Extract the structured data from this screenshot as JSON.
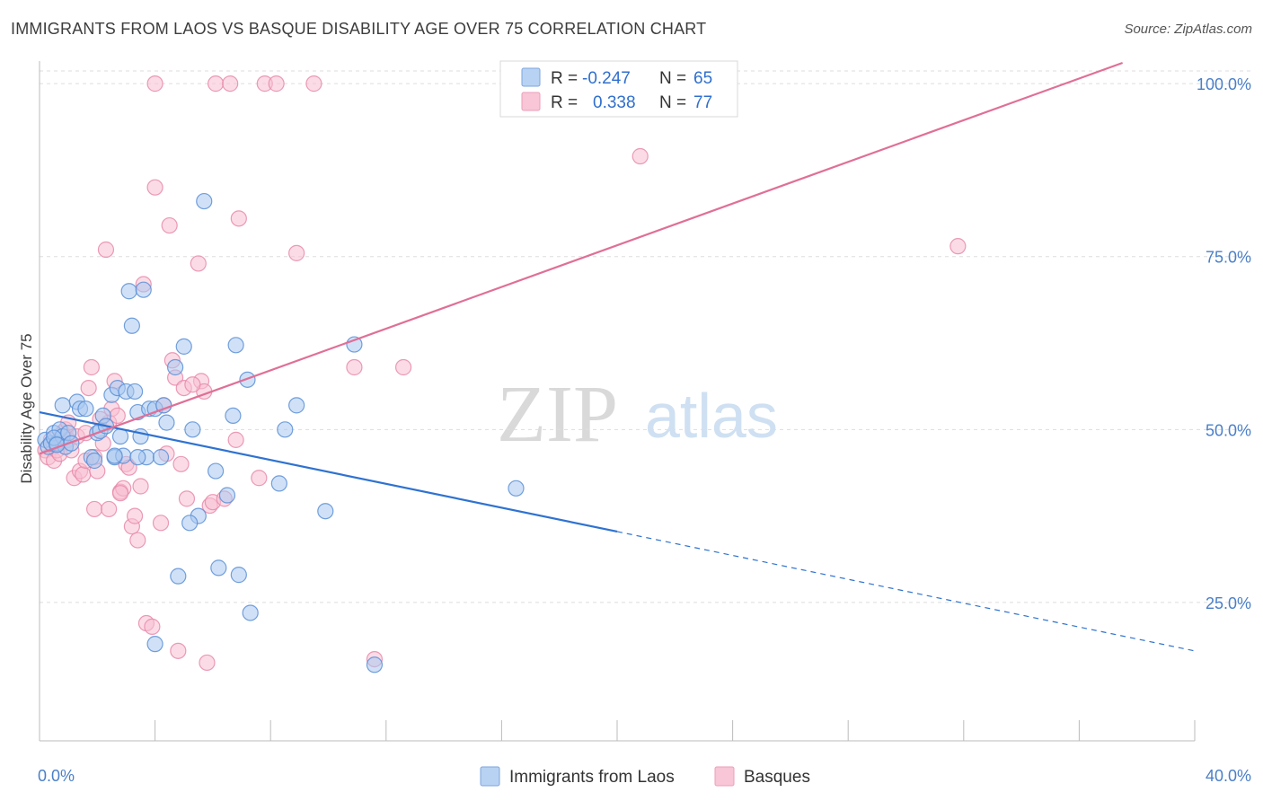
{
  "header": {
    "title": "IMMIGRANTS FROM LAOS VS BASQUE DISABILITY AGE OVER 75 CORRELATION CHART",
    "source": "Source: ZipAtlas.com"
  },
  "legend": {
    "r_label": "R =",
    "n_label": "N =",
    "series": [
      {
        "r": "-0.247",
        "n": "65",
        "color": "#8db4e8"
      },
      {
        "r": "0.338",
        "n": "77",
        "color": "#f3a8c1"
      }
    ]
  },
  "bottom_legend": [
    "Immigrants from Laos",
    "Basques"
  ],
  "watermark": {
    "zip": "ZIP",
    "atlas": "atlas"
  },
  "colors": {
    "blue_fill": "#a9c8f0",
    "blue_stroke": "#5b8fd6",
    "blue_line": "#2f72d0",
    "pink_fill": "#f7c0d2",
    "pink_stroke": "#e88aaa",
    "pink_line": "#e06f97",
    "tick": "#4a7fc8",
    "grid": "#dddddd"
  },
  "chart_data": {
    "type": "scatter",
    "title": "IMMIGRANTS FROM LAOS VS BASQUE DISABILITY AGE OVER 75 CORRELATION CHART",
    "xlabel": "",
    "ylabel": "Disability Age Over 75",
    "xlim": [
      0,
      40
    ],
    "ylim": [
      5,
      103
    ],
    "x_ticks": [
      "0.0%",
      "40.0%"
    ],
    "y_ticks": [
      {
        "value": 100,
        "label": "100.0%"
      },
      {
        "value": 75,
        "label": "75.0%"
      },
      {
        "value": 50,
        "label": "50.0%"
      },
      {
        "value": 25,
        "label": "25.0%"
      }
    ],
    "grid": true,
    "legend_position": "top-center",
    "series": [
      {
        "name": "Immigrants from Laos",
        "r": -0.247,
        "n": 65,
        "trend": {
          "x0": 0,
          "y0": 52.5,
          "x_solid_end": 20,
          "x1": 40,
          "y1": 18.0
        },
        "points": [
          [
            0.2,
            48.5
          ],
          [
            0.3,
            47.5
          ],
          [
            0.4,
            48
          ],
          [
            0.5,
            49.5
          ],
          [
            0.6,
            48
          ],
          [
            0.7,
            50
          ],
          [
            0.8,
            49
          ],
          [
            0.9,
            47.5
          ],
          [
            0.5,
            48.8
          ],
          [
            0.6,
            47.8
          ],
          [
            1.0,
            49.5
          ],
          [
            1.1,
            48
          ],
          [
            0.8,
            53.5
          ],
          [
            1.3,
            54.0
          ],
          [
            1.4,
            53.0
          ],
          [
            1.6,
            53.0
          ],
          [
            1.8,
            46
          ],
          [
            1.9,
            45.5
          ],
          [
            2.0,
            49.5
          ],
          [
            2.1,
            49.8
          ],
          [
            2.2,
            52
          ],
          [
            2.3,
            50.5
          ],
          [
            2.5,
            55
          ],
          [
            2.6,
            46
          ],
          [
            2.7,
            56
          ],
          [
            2.8,
            49
          ],
          [
            2.9,
            46.2
          ],
          [
            3.0,
            55.5
          ],
          [
            3.1,
            70
          ],
          [
            3.2,
            65
          ],
          [
            3.3,
            55.5
          ],
          [
            3.4,
            52.5
          ],
          [
            3.5,
            49
          ],
          [
            3.6,
            70.2
          ],
          [
            3.7,
            46
          ],
          [
            3.8,
            53
          ],
          [
            4.0,
            53
          ],
          [
            4.2,
            46
          ],
          [
            4.3,
            53.5
          ],
          [
            4.4,
            51
          ],
          [
            4.7,
            59
          ],
          [
            5.0,
            62
          ],
          [
            5.3,
            50
          ],
          [
            5.5,
            37.5
          ],
          [
            5.7,
            83
          ],
          [
            6.1,
            44
          ],
          [
            6.2,
            30
          ],
          [
            6.5,
            40.5
          ],
          [
            6.7,
            52
          ],
          [
            6.8,
            62.2
          ],
          [
            6.9,
            29
          ],
          [
            7.2,
            57.2
          ],
          [
            7.3,
            23.5
          ],
          [
            8.3,
            42.2
          ],
          [
            8.5,
            50
          ],
          [
            8.9,
            53.5
          ],
          [
            9.9,
            38.2
          ],
          [
            10.9,
            62.3
          ],
          [
            11.6,
            16
          ],
          [
            16.5,
            41.5
          ],
          [
            2.6,
            46.2
          ],
          [
            3.4,
            46.0
          ],
          [
            4.8,
            28.8
          ],
          [
            5.2,
            36.5
          ],
          [
            4.0,
            19
          ]
        ]
      },
      {
        "name": "Basques",
        "r": 0.338,
        "n": 77,
        "trend": {
          "x0": 0,
          "y0": 46.5,
          "x_solid_end": 37.5,
          "x1": 37.5,
          "y1": 103
        },
        "points": [
          [
            0.2,
            47
          ],
          [
            0.3,
            46
          ],
          [
            0.4,
            48.5
          ],
          [
            0.5,
            47.5
          ],
          [
            0.5,
            45.5
          ],
          [
            0.6,
            47
          ],
          [
            0.7,
            46.5
          ],
          [
            0.8,
            49.5
          ],
          [
            0.9,
            50
          ],
          [
            1.0,
            48.5
          ],
          [
            1.1,
            47
          ],
          [
            1.0,
            51
          ],
          [
            1.2,
            43
          ],
          [
            1.3,
            49
          ],
          [
            1.4,
            44
          ],
          [
            1.5,
            43.5
          ],
          [
            1.6,
            45.5
          ],
          [
            1.7,
            56
          ],
          [
            1.8,
            59
          ],
          [
            1.9,
            46
          ],
          [
            2.0,
            44
          ],
          [
            1.9,
            38.5
          ],
          [
            2.2,
            48
          ],
          [
            2.3,
            76
          ],
          [
            2.4,
            38.5
          ],
          [
            2.4,
            51
          ],
          [
            2.5,
            53
          ],
          [
            2.6,
            57
          ],
          [
            2.7,
            52
          ],
          [
            2.8,
            41
          ],
          [
            2.9,
            41.5
          ],
          [
            3.0,
            45
          ],
          [
            3.1,
            44.5
          ],
          [
            3.2,
            36
          ],
          [
            3.3,
            37.5
          ],
          [
            3.4,
            34
          ],
          [
            3.5,
            41.8
          ],
          [
            3.6,
            71
          ],
          [
            3.7,
            22
          ],
          [
            4.0,
            100
          ],
          [
            4.0,
            85
          ],
          [
            4.2,
            36.5
          ],
          [
            4.4,
            46.5
          ],
          [
            4.5,
            79.5
          ],
          [
            4.6,
            60
          ],
          [
            4.7,
            57.5
          ],
          [
            4.8,
            18
          ],
          [
            4.9,
            45
          ],
          [
            5.0,
            56
          ],
          [
            5.1,
            40
          ],
          [
            5.5,
            74
          ],
          [
            5.6,
            57
          ],
          [
            5.8,
            16.3
          ],
          [
            5.9,
            39
          ],
          [
            6.0,
            39.5
          ],
          [
            6.1,
            100
          ],
          [
            6.4,
            40
          ],
          [
            6.6,
            100
          ],
          [
            6.9,
            80.5
          ],
          [
            7.6,
            43
          ],
          [
            7.8,
            100
          ],
          [
            8.2,
            100
          ],
          [
            8.9,
            75.5
          ],
          [
            9.5,
            100
          ],
          [
            10.9,
            59
          ],
          [
            11.6,
            16.8
          ],
          [
            12.6,
            59
          ],
          [
            20.8,
            89.5
          ],
          [
            31.8,
            76.5
          ],
          [
            5.7,
            55.5
          ],
          [
            3.9,
            21.5
          ],
          [
            1.6,
            49.5
          ],
          [
            2.8,
            40.8
          ],
          [
            5.3,
            56.5
          ],
          [
            4.3,
            53.5
          ],
          [
            6.8,
            48.5
          ],
          [
            2.1,
            51.5
          ]
        ]
      }
    ]
  }
}
